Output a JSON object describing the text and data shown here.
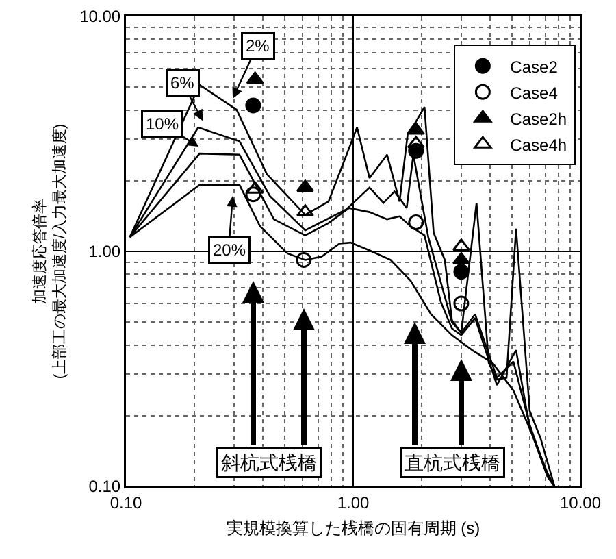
{
  "chart_data": {
    "type": "line",
    "xlabel": "実規模換算した桟橋の固有周期 (s)",
    "ylabel": "加速度応答倍率\n(上部工の最大加速度/入力最大加速度)",
    "log": "xy",
    "xlim": [
      0.1,
      10
    ],
    "ylim": [
      0.1,
      10
    ],
    "xticks": [
      {
        "value": 0.1,
        "label": "0.10"
      },
      {
        "value": 1,
        "label": "1.00"
      },
      {
        "value": 10,
        "label": "10.00"
      }
    ],
    "yticks": [
      {
        "value": 0.1,
        "label": "0.10"
      },
      {
        "value": 1,
        "label": "1.00"
      },
      {
        "value": 10,
        "label": "10.00"
      }
    ],
    "grid": true,
    "legend": "top right",
    "line_style": "solid",
    "series": [
      {
        "color": "#000000",
        "x": [
          0.104,
          0.211,
          0.307,
          0.417,
          0.615,
          0.779,
          1.04,
          1.18,
          1.41,
          1.6,
          1.74,
          1.87,
          2.06,
          2.26,
          2.53,
          2.72,
          2.99,
          3.49,
          3.95,
          4.29,
          4.73,
          5.21,
          5.98,
          6.68,
          7.69
        ],
        "values": [
          1.15,
          5.11,
          4.01,
          2.13,
          1.43,
          1.63,
          3.37,
          2.05,
          2.58,
          1.63,
          3.19,
          3.51,
          4.12,
          1.2,
          0.92,
          0.51,
          0.45,
          1.61,
          0.335,
          0.285,
          0.29,
          1.25,
          0.21,
          0.16,
          0.1
        ]
      },
      {
        "color": "#000000",
        "x": [
          0.104,
          0.208,
          0.316,
          0.43,
          0.615,
          0.933,
          1.18,
          1.36,
          1.52,
          1.72,
          1.84,
          2.14,
          2.72,
          2.99,
          3.44,
          4.29,
          5.07,
          5.98,
          7.16,
          7.69
        ],
        "values": [
          1.15,
          3.37,
          2.94,
          1.72,
          1.23,
          1.51,
          1.87,
          1.61,
          1.8,
          1.53,
          2.58,
          1.15,
          0.5,
          0.45,
          0.54,
          0.29,
          0.34,
          0.183,
          0.111,
          0.1
        ]
      },
      {
        "color": "#000000",
        "x": [
          0.104,
          0.211,
          0.316,
          0.448,
          0.615,
          0.779,
          0.959,
          1.18,
          1.41,
          1.6,
          1.79,
          2.06,
          2.43,
          2.72,
          2.99,
          3.44,
          4.29,
          5.21,
          5.98,
          7.16,
          7.69
        ],
        "values": [
          1.15,
          2.61,
          2.58,
          1.37,
          1.17,
          1.32,
          1.53,
          1.47,
          1.37,
          1.41,
          1.28,
          1.17,
          0.61,
          0.47,
          0.44,
          0.52,
          0.27,
          0.38,
          0.178,
          0.11,
          0.1
        ]
      },
      {
        "color": "#000000",
        "x": [
          0.104,
          0.211,
          0.316,
          0.389,
          0.514,
          0.615,
          0.727,
          0.871,
          0.973,
          1.18,
          1.46,
          1.79,
          2.2,
          2.72,
          3.34,
          4.11,
          5.07,
          6.24,
          7.16,
          7.69
        ],
        "values": [
          1.15,
          1.92,
          1.92,
          1.28,
          0.98,
          0.92,
          0.95,
          1.08,
          1.09,
          1.01,
          0.92,
          0.75,
          0.54,
          0.44,
          0.38,
          0.335,
          0.256,
          0.16,
          0.114,
          0.1
        ]
      },
      {
        "type": "scatter",
        "name": "Case2",
        "color": "#000000",
        "marker": "circle",
        "x": [
          0.363,
          1.89,
          2.99
        ],
        "values": [
          4.18,
          2.68,
          0.82
        ]
      },
      {
        "type": "scatter",
        "name": "Case4",
        "color": "#000000",
        "marker": "circle-open",
        "x": [
          0.363,
          0.606,
          1.89,
          2.99
        ],
        "values": [
          1.75,
          0.92,
          1.33,
          0.6
        ]
      },
      {
        "type": "scatter",
        "name": "Case2h",
        "color": "#000000",
        "marker": "triangle",
        "x": [
          0.37,
          0.615,
          1.89,
          2.99
        ],
        "values": [
          5.39,
          1.87,
          3.28,
          0.92
        ]
      },
      {
        "type": "scatter",
        "name": "Case4h",
        "color": "#000000",
        "marker": "triangle-open",
        "x": [
          0.37,
          0.615,
          1.89,
          2.99
        ],
        "values": [
          1.84,
          1.47,
          2.87,
          1.05
        ]
      }
    ],
    "annotations": [
      "2%",
      "6%",
      "10%",
      "20%",
      "斜杭式桟橋",
      "直杭式桟橋"
    ]
  }
}
